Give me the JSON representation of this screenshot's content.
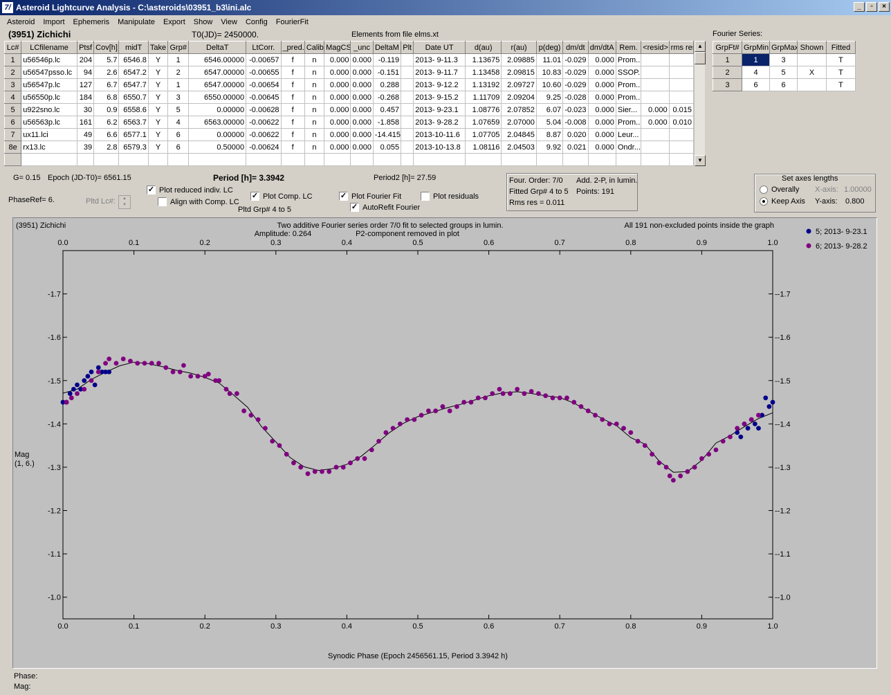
{
  "window": {
    "title": "Asteroid Lightcurve Analysis - C:\\asteroids\\03951_b3\\ini.alc",
    "app_icon_glyph": "7/"
  },
  "menu": [
    "Asteroid",
    "Import",
    "Ephemeris",
    "Manipulate",
    "Export",
    "Show",
    "View",
    "Config",
    "FourierFit"
  ],
  "header": {
    "object": "(3951) Zichichi",
    "t0": "T0(JD)= 2450000.",
    "elements": "Elements from file elms.xt",
    "fourier_series": "Fourier Series:"
  },
  "lc_table": {
    "columns": [
      "Lc#",
      "LCfilename",
      "Ptsf",
      "Cov[h]",
      "midT",
      "Take",
      "Grp#",
      "DeltaT",
      "LtCorr.",
      "_pred.",
      "Calib.",
      "MagCS",
      "_unc",
      "DeltaM",
      "Plt",
      "Date UT",
      "d(au)",
      "r(au)",
      "p(deg)",
      "dm/dt",
      "dm/dtA",
      "Rem.",
      "<resid>",
      "rms res"
    ],
    "rows": [
      [
        "1",
        "u56546p.lc",
        "204",
        "5.7",
        "6546.8",
        "Y",
        "1",
        "6546.00000",
        "-0.00657",
        "f",
        "n",
        "0.000",
        "0.000",
        "-0.119",
        "",
        "2013- 9-11.3",
        "1.13675",
        "2.09885",
        "11.01",
        "-0.029",
        "0.000",
        "Prom...",
        "",
        ""
      ],
      [
        "2",
        "u56547psso.lc",
        "94",
        "2.6",
        "6547.2",
        "Y",
        "2",
        "6547.00000",
        "-0.00655",
        "f",
        "n",
        "0.000",
        "0.000",
        "-0.151",
        "",
        "2013- 9-11.7",
        "1.13458",
        "2.09815",
        "10.83",
        "-0.029",
        "0.000",
        "SSOP...",
        "",
        ""
      ],
      [
        "3",
        "u56547p.lc",
        "127",
        "6.7",
        "6547.7",
        "Y",
        "1",
        "6547.00000",
        "-0.00654",
        "f",
        "n",
        "0.000",
        "0.000",
        "0.288",
        "",
        "2013- 9-12.2",
        "1.13192",
        "2.09727",
        "10.60",
        "-0.029",
        "0.000",
        "Prom...",
        "",
        ""
      ],
      [
        "4",
        "u56550p.lc",
        "184",
        "6.8",
        "6550.7",
        "Y",
        "3",
        "6550.00000",
        "-0.00645",
        "f",
        "n",
        "0.000",
        "0.000",
        "-0.268",
        "",
        "2013- 9-15.2",
        "1.11709",
        "2.09204",
        "9.25",
        "-0.028",
        "0.000",
        "Prom...",
        "",
        ""
      ],
      [
        "5",
        "u922sno.lc",
        "30",
        "0.9",
        "6558.6",
        "Y",
        "5",
        "0.00000",
        "-0.00628",
        "f",
        "n",
        "0.000",
        "0.000",
        "0.457",
        "",
        "2013- 9-23.1",
        "1.08776",
        "2.07852",
        "6.07",
        "-0.023",
        "0.000",
        "Sier...",
        "0.000",
        "0.015"
      ],
      [
        "6",
        "u56563p.lc",
        "161",
        "6.2",
        "6563.7",
        "Y",
        "4",
        "6563.00000",
        "-0.00622",
        "f",
        "n",
        "0.000",
        "0.000",
        "-1.858",
        "",
        "2013- 9-28.2",
        "1.07659",
        "2.07000",
        "5.04",
        "-0.008",
        "0.000",
        "Prom...",
        "0.000",
        "0.010"
      ],
      [
        "7",
        "ux11.lci",
        "49",
        "6.6",
        "6577.1",
        "Y",
        "6",
        "0.00000",
        "-0.00622",
        "f",
        "n",
        "0.000",
        "0.000",
        "-14.415",
        "",
        "2013-10-11.6",
        "1.07705",
        "2.04845",
        "8.87",
        "0.020",
        "0.000",
        "Leur...",
        "",
        ""
      ],
      [
        "8e",
        "rx13.lc",
        "39",
        "2.8",
        "6579.3",
        "Y",
        "6",
        "0.50000",
        "-0.00624",
        "f",
        "n",
        "0.000",
        "0.000",
        "0.055",
        "",
        "2013-10-13.8",
        "1.08116",
        "2.04503",
        "9.92",
        "0.021",
        "0.000",
        "Ondr...",
        "",
        ""
      ]
    ]
  },
  "fourier_table": {
    "columns": [
      "GrpFt#",
      "GrpMin",
      "GrpMax",
      "Shown",
      "Fitted"
    ],
    "rows": [
      [
        "1",
        "1",
        "3",
        "",
        "T"
      ],
      [
        "2",
        "4",
        "5",
        "X",
        "T"
      ],
      [
        "3",
        "6",
        "6",
        "",
        "T"
      ]
    ]
  },
  "controls": {
    "g_label": "G= 0.15",
    "epoch": "Epoch (JD-T0)= 6561.15",
    "period": "Period [h]= 3.3942",
    "period2": "Period2 [h]= 27.59",
    "phaseref": "PhaseRef= 6.",
    "pltd_lc": "Pltd Lc#:",
    "pltd_grp": "Pltd Grp#  4  to   5",
    "plot_reduced": "Plot reduced indiv. LC",
    "align_comp": "Align with Comp. LC",
    "plot_comp": "Plot Comp. LC",
    "plot_fourier": "Plot Fourier Fit",
    "autorefit": "AutoRefit Fourier",
    "plot_residuals": "Plot residuals",
    "info1": "Four. Order:  7/0",
    "info2": "Add. 2-P, in lumin.",
    "info3": "Fitted Grp# 4 to 5",
    "info4": "Points: 191",
    "info5": "Rms res      = 0.011",
    "axes_title": "Set axes lengths",
    "overally": "Overally",
    "keep_axis": "Keep Axis",
    "x_axis_label": "X-axis:",
    "x_axis_val": "1.00000",
    "y_axis_label": "Y-axis:",
    "y_axis_val": "0.800"
  },
  "plot": {
    "title_left": "(3951) Zichichi",
    "title_center1": "Two additive Fourier series order 7/0 fit to selected groups in lumin.",
    "title_center2a": "Amplitude: 0.264",
    "title_center2b": "P2-component removed in plot",
    "title_right": "All 191 non-excluded points inside the graph",
    "ylabel1": "Mag",
    "ylabel2": "(1, 6.)",
    "xlabel": "Synodic Phase (Epoch 2456561.15, Period 3.3942 h)",
    "legend": [
      {
        "label": "5; 2013- 9-23.1",
        "color": "#00008b"
      },
      {
        "label": "6; 2013- 9-28.2",
        "color": "#800080"
      }
    ]
  },
  "status": {
    "phase": "Phase:",
    "mag": "Mag:"
  },
  "chart_data": {
    "type": "scatter",
    "xlim": [
      0,
      1.0
    ],
    "ylim": [
      -1.8,
      -0.95
    ],
    "x_ticks": [
      0.0,
      0.1,
      0.2,
      0.3,
      0.4,
      0.5,
      0.6,
      0.7,
      0.8,
      0.9,
      1.0
    ],
    "x_tick_labels": [
      "0.0",
      "0.1",
      "0.2",
      "0.3",
      "0.4",
      "0.5",
      "0.6",
      "0.7",
      "0.8",
      "0.9",
      "1.0"
    ],
    "y_ticks": [
      -1.7,
      -1.6,
      -1.5,
      -1.4,
      -1.3,
      -1.2,
      -1.1,
      -1.0
    ],
    "y_tick_labels": [
      "-1.7",
      "-1.6",
      "-1.5",
      "-1.4",
      "-1.3",
      "-1.2",
      "-1.1",
      "-1.0"
    ],
    "series": [
      {
        "name": "5; 2013- 9-23.1",
        "color": "#00008b",
        "points": [
          [
            0.0,
            -1.45
          ],
          [
            0.005,
            -1.45
          ],
          [
            0.01,
            -1.47
          ],
          [
            0.015,
            -1.48
          ],
          [
            0.02,
            -1.49
          ],
          [
            0.025,
            -1.48
          ],
          [
            0.03,
            -1.5
          ],
          [
            0.035,
            -1.51
          ],
          [
            0.04,
            -1.52
          ],
          [
            0.045,
            -1.49
          ],
          [
            0.05,
            -1.53
          ],
          [
            0.055,
            -1.52
          ],
          [
            0.06,
            -1.52
          ],
          [
            0.065,
            -1.52
          ],
          [
            0.95,
            -1.38
          ],
          [
            0.955,
            -1.37
          ],
          [
            0.96,
            -1.4
          ],
          [
            0.965,
            -1.39
          ],
          [
            0.97,
            -1.41
          ],
          [
            0.975,
            -1.4
          ],
          [
            0.98,
            -1.39
          ],
          [
            0.985,
            -1.42
          ],
          [
            0.99,
            -1.46
          ],
          [
            0.995,
            -1.44
          ],
          [
            1.0,
            -1.45
          ]
        ]
      },
      {
        "name": "6; 2013- 9-28.2",
        "color": "#800080",
        "points": [
          [
            0.005,
            -1.45
          ],
          [
            0.012,
            -1.46
          ],
          [
            0.02,
            -1.47
          ],
          [
            0.03,
            -1.48
          ],
          [
            0.04,
            -1.5
          ],
          [
            0.05,
            -1.52
          ],
          [
            0.06,
            -1.54
          ],
          [
            0.065,
            -1.55
          ],
          [
            0.075,
            -1.54
          ],
          [
            0.085,
            -1.55
          ],
          [
            0.095,
            -1.545
          ],
          [
            0.105,
            -1.54
          ],
          [
            0.115,
            -1.54
          ],
          [
            0.125,
            -1.54
          ],
          [
            0.135,
            -1.54
          ],
          [
            0.145,
            -1.53
          ],
          [
            0.155,
            -1.52
          ],
          [
            0.165,
            -1.52
          ],
          [
            0.17,
            -1.535
          ],
          [
            0.18,
            -1.51
          ],
          [
            0.19,
            -1.51
          ],
          [
            0.2,
            -1.51
          ],
          [
            0.205,
            -1.515
          ],
          [
            0.215,
            -1.5
          ],
          [
            0.22,
            -1.5
          ],
          [
            0.23,
            -1.48
          ],
          [
            0.235,
            -1.47
          ],
          [
            0.245,
            -1.47
          ],
          [
            0.255,
            -1.43
          ],
          [
            0.265,
            -1.42
          ],
          [
            0.275,
            -1.41
          ],
          [
            0.285,
            -1.39
          ],
          [
            0.295,
            -1.36
          ],
          [
            0.305,
            -1.35
          ],
          [
            0.315,
            -1.33
          ],
          [
            0.325,
            -1.31
          ],
          [
            0.335,
            -1.3
          ],
          [
            0.345,
            -1.285
          ],
          [
            0.355,
            -1.29
          ],
          [
            0.365,
            -1.29
          ],
          [
            0.375,
            -1.29
          ],
          [
            0.385,
            -1.3
          ],
          [
            0.395,
            -1.3
          ],
          [
            0.405,
            -1.31
          ],
          [
            0.415,
            -1.32
          ],
          [
            0.425,
            -1.32
          ],
          [
            0.435,
            -1.34
          ],
          [
            0.445,
            -1.36
          ],
          [
            0.455,
            -1.38
          ],
          [
            0.465,
            -1.39
          ],
          [
            0.475,
            -1.4
          ],
          [
            0.485,
            -1.41
          ],
          [
            0.495,
            -1.41
          ],
          [
            0.505,
            -1.42
          ],
          [
            0.515,
            -1.43
          ],
          [
            0.525,
            -1.43
          ],
          [
            0.535,
            -1.44
          ],
          [
            0.545,
            -1.43
          ],
          [
            0.555,
            -1.44
          ],
          [
            0.565,
            -1.45
          ],
          [
            0.575,
            -1.45
          ],
          [
            0.585,
            -1.46
          ],
          [
            0.595,
            -1.46
          ],
          [
            0.605,
            -1.47
          ],
          [
            0.615,
            -1.48
          ],
          [
            0.62,
            -1.47
          ],
          [
            0.63,
            -1.47
          ],
          [
            0.64,
            -1.48
          ],
          [
            0.65,
            -1.47
          ],
          [
            0.66,
            -1.475
          ],
          [
            0.67,
            -1.47
          ],
          [
            0.68,
            -1.465
          ],
          [
            0.69,
            -1.46
          ],
          [
            0.7,
            -1.46
          ],
          [
            0.71,
            -1.46
          ],
          [
            0.72,
            -1.45
          ],
          [
            0.73,
            -1.44
          ],
          [
            0.74,
            -1.43
          ],
          [
            0.75,
            -1.42
          ],
          [
            0.76,
            -1.41
          ],
          [
            0.77,
            -1.4
          ],
          [
            0.78,
            -1.4
          ],
          [
            0.79,
            -1.39
          ],
          [
            0.8,
            -1.38
          ],
          [
            0.81,
            -1.36
          ],
          [
            0.82,
            -1.35
          ],
          [
            0.83,
            -1.33
          ],
          [
            0.84,
            -1.31
          ],
          [
            0.85,
            -1.3
          ],
          [
            0.855,
            -1.28
          ],
          [
            0.86,
            -1.27
          ],
          [
            0.87,
            -1.28
          ],
          [
            0.88,
            -1.29
          ],
          [
            0.89,
            -1.3
          ],
          [
            0.9,
            -1.32
          ],
          [
            0.91,
            -1.33
          ],
          [
            0.92,
            -1.34
          ],
          [
            0.93,
            -1.36
          ],
          [
            0.94,
            -1.37
          ],
          [
            0.95,
            -1.39
          ],
          [
            0.96,
            -1.4
          ],
          [
            0.97,
            -1.41
          ],
          [
            0.98,
            -1.42
          ]
        ]
      }
    ]
  }
}
